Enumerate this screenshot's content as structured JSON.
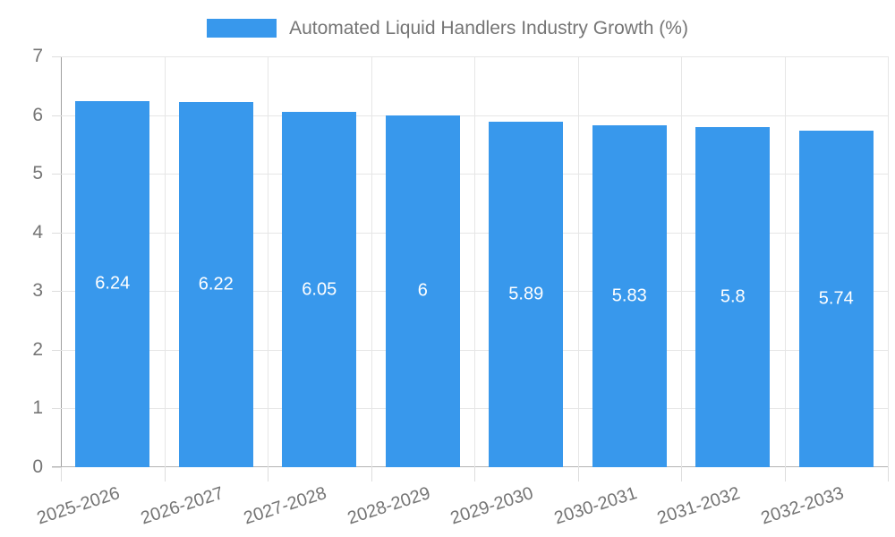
{
  "legend": {
    "position": "top"
  },
  "chart_data": {
    "type": "bar",
    "title": "Automated Liquid Handlers Industry Growth (%)",
    "categories": [
      "2025-2026",
      "2026-2027",
      "2027-2028",
      "2028-2029",
      "2029-2030",
      "2030-2031",
      "2031-2032",
      "2032-2033"
    ],
    "values": [
      6.24,
      6.22,
      6.05,
      6,
      5.89,
      5.83,
      5.8,
      5.74
    ],
    "data_labels": [
      "6.24",
      "6.22",
      "6.05",
      "6",
      "5.89",
      "5.83",
      "5.8",
      "5.74"
    ],
    "xlabel": "",
    "ylabel": "",
    "ylim": [
      0,
      7
    ],
    "yticks": [
      0,
      1,
      2,
      3,
      4,
      5,
      6,
      7
    ],
    "grid": true,
    "legend_position": "top",
    "colors": {
      "bar": "#3898EC",
      "bar_label": "#FFFFFF",
      "axis_text": "#757575",
      "gridline": "#E6E6E6",
      "tick": "#DDDDDD",
      "axis_line_y": "#9E9E9E",
      "axis_line_x": "#B3B3B3",
      "background": "#FFFFFF"
    }
  }
}
